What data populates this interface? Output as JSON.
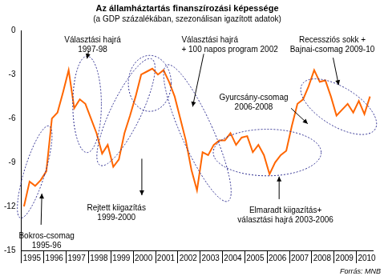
{
  "chart_data": {
    "type": "line",
    "title": "Az államháztartás finanszírozási képessége",
    "subtitle": "(a GDP százalékában, szezonálisan igazított adatok)",
    "source": "Forrás: MNB",
    "categories": [
      null,
      "1995",
      null,
      null,
      null,
      "1996",
      null,
      null,
      null,
      "1997",
      null,
      null,
      null,
      "1998",
      null,
      null,
      null,
      "1999",
      null,
      null,
      null,
      "2000",
      null,
      null,
      null,
      "2001",
      null,
      null,
      null,
      "2002",
      null,
      null,
      null,
      "2003",
      null,
      null,
      null,
      "2004",
      null,
      null,
      null,
      "2005",
      null,
      null,
      null,
      "2006",
      null,
      null,
      null,
      "2007",
      null,
      null,
      null,
      "2008",
      null,
      null,
      null,
      "2009",
      null,
      null,
      null,
      "2010",
      null
    ],
    "values": [
      -12.0,
      -10.3,
      -10.6,
      -10.2,
      -9.6,
      -6.0,
      -5.6,
      -4.2,
      -2.7,
      -5.3,
      -4.7,
      -5.0,
      -6.0,
      -7.0,
      -8.4,
      -7.8,
      -9.3,
      -8.8,
      -7.0,
      -5.8,
      -4.5,
      -3.0,
      -2.8,
      -2.6,
      -3.0,
      -2.7,
      -3.5,
      -4.5,
      -6.0,
      -7.5,
      -9.5,
      -10.9,
      -8.3,
      -8.5,
      -7.8,
      -7.5,
      -7.5,
      -7.0,
      -7.8,
      -7.3,
      -7.2,
      -8.3,
      -7.8,
      -8.5,
      -9.8,
      -9.0,
      -8.5,
      -8.2,
      -6.5,
      -5.0,
      -4.7,
      -3.8,
      -2.7,
      -3.5,
      -3.4,
      -4.5,
      -5.8,
      -5.4,
      -5.0,
      -5.6,
      -4.8,
      -5.7,
      -4.5
    ],
    "color": "#ff6600",
    "ylim": [
      -15,
      0
    ],
    "yticks": [
      -15,
      -12,
      -9,
      -6,
      -3,
      0
    ],
    "grid": false,
    "annotations": [
      {
        "text": [
          "Bokros-csomag",
          "1995-96"
        ]
      },
      {
        "text": [
          "Választási hajrá",
          "1997-98"
        ]
      },
      {
        "text": [
          "Rejtett kiigazítás",
          "1999-2000"
        ]
      },
      {
        "text": [
          "Választási hajrá",
          "+ 100 napos program 2002"
        ]
      },
      {
        "text": [
          "Gyurcsány-csomag",
          "2006-2008"
        ]
      },
      {
        "text": [
          "Elmaradt kiigazítás+",
          "választási hajrá 2003-2006"
        ]
      },
      {
        "text": [
          "Recessziós sokk +",
          "Bajnai-csomag 2009-10"
        ]
      }
    ]
  }
}
